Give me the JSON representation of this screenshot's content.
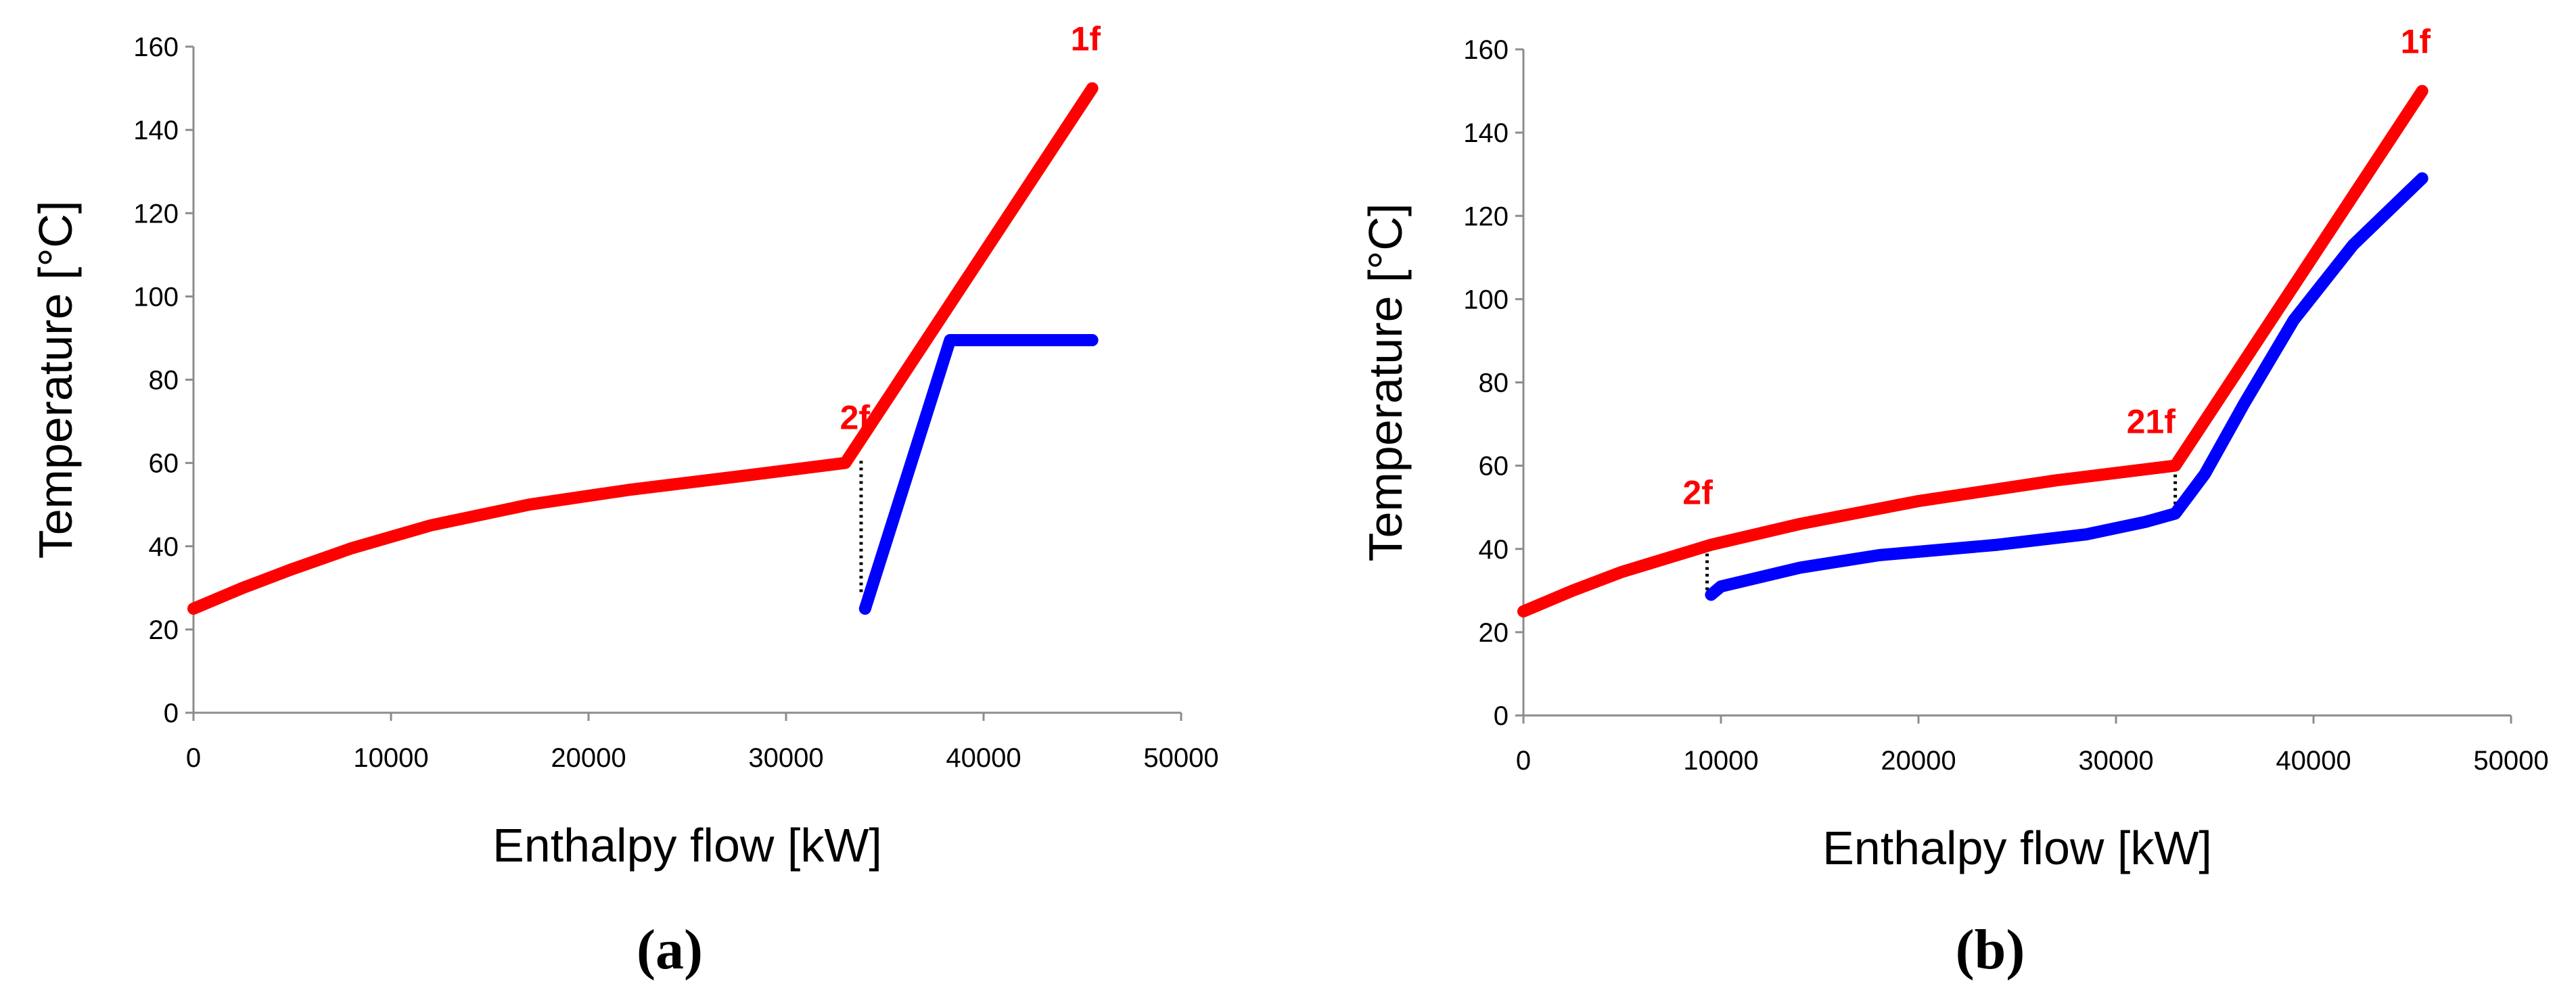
{
  "colors": {
    "hot": "#ff0000",
    "cold": "#0000ff",
    "gap": "#000000",
    "axis": "#8c8c8c"
  },
  "chart_data": [
    {
      "type": "line",
      "panel_label": "(a)",
      "xlabel": "Enthalpy flow [kW]",
      "ylabel": "Temperature [°C]",
      "xlim": [
        0,
        50000
      ],
      "ylim": [
        0,
        160
      ],
      "xticks": [
        0,
        10000,
        20000,
        30000,
        40000,
        50000
      ],
      "yticks": [
        0,
        20,
        40,
        60,
        80,
        100,
        120,
        140,
        160
      ],
      "series": [
        {
          "color": "hot",
          "points": [
            [
              0,
              25
            ],
            [
              2500,
              30
            ],
            [
              5000,
              34.5
            ],
            [
              8000,
              39.5
            ],
            [
              12000,
              45
            ],
            [
              17000,
              50
            ],
            [
              22000,
              53.5
            ],
            [
              28000,
              57
            ],
            [
              33000,
              60
            ],
            [
              45500,
              150
            ]
          ]
        },
        {
          "color": "cold",
          "points": [
            [
              34000,
              25
            ],
            [
              38300,
              89.5
            ],
            [
              45500,
              89.5
            ]
          ]
        }
      ],
      "gap_lines": [
        {
          "x": 33800,
          "y1": 60.5,
          "y2": 28
        }
      ],
      "point_labels": [
        {
          "text": "1f",
          "x": 45500,
          "y": 150
        },
        {
          "text": "2f",
          "x": 33000,
          "y": 60
        }
      ]
    },
    {
      "type": "line",
      "panel_label": "(b)",
      "xlabel": "Enthalpy flow [kW]",
      "ylabel": "Temperature [°C]",
      "xlim": [
        0,
        50000
      ],
      "ylim": [
        0,
        160
      ],
      "xticks": [
        0,
        10000,
        20000,
        30000,
        40000,
        50000
      ],
      "yticks": [
        0,
        20,
        40,
        60,
        80,
        100,
        120,
        140,
        160
      ],
      "series": [
        {
          "color": "hot",
          "points": [
            [
              0,
              25
            ],
            [
              2500,
              30
            ],
            [
              5000,
              34.5
            ],
            [
              9500,
              41
            ],
            [
              14000,
              46
            ],
            [
              20000,
              51.5
            ],
            [
              27000,
              56.5
            ],
            [
              33000,
              60
            ],
            [
              45500,
              150
            ]
          ]
        },
        {
          "color": "cold",
          "points": [
            [
              9500,
              29
            ],
            [
              10000,
              31
            ],
            [
              14000,
              35.5
            ],
            [
              18000,
              38.5
            ],
            [
              24000,
              41
            ],
            [
              28500,
              43.5
            ],
            [
              31500,
              46.5
            ],
            [
              33000,
              48.5
            ],
            [
              34500,
              58
            ],
            [
              36500,
              75
            ],
            [
              39000,
              95
            ],
            [
              42000,
              113
            ],
            [
              45500,
              129
            ]
          ]
        }
      ],
      "gap_lines": [
        {
          "x": 9300,
          "y1": 40.5,
          "y2": 30
        },
        {
          "x": 33000,
          "y1": 59.5,
          "y2": 49
        }
      ],
      "point_labels": [
        {
          "text": "1f",
          "x": 45500,
          "y": 150
        },
        {
          "text": "21f",
          "x": 33000,
          "y": 60
        },
        {
          "text": "2f",
          "x": 9500,
          "y": 41
        }
      ]
    }
  ]
}
